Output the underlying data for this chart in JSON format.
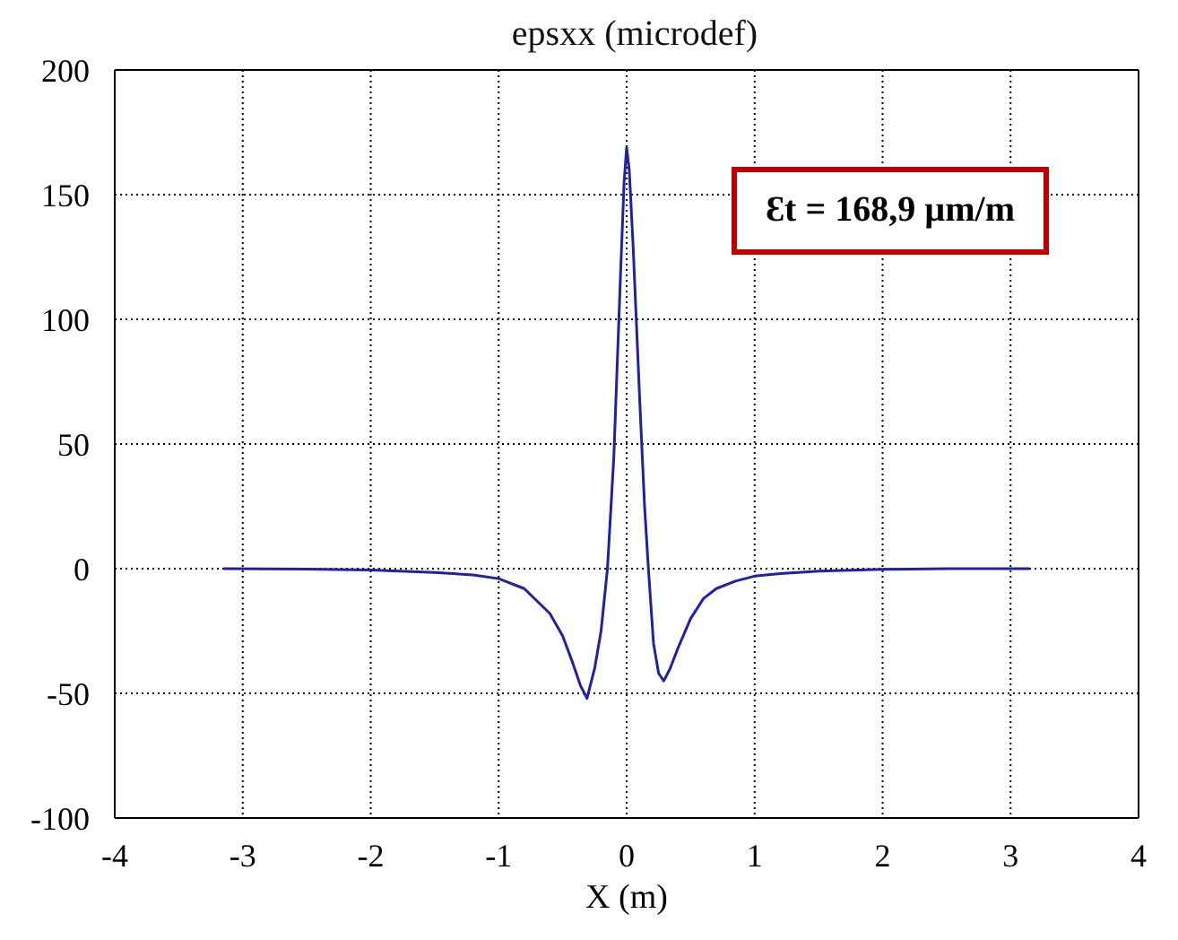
{
  "chart_data": {
    "type": "line",
    "title": "epsxx (microdef)",
    "xlabel": "X (m)",
    "annotations": [
      "Ɛt = 168,9 µm/m"
    ],
    "x": [
      -3.15,
      -2.5,
      -2,
      -1.5,
      -1.2,
      -1,
      -0.8,
      -0.6,
      -0.5,
      -0.42,
      -0.36,
      -0.31,
      -0.25,
      -0.2,
      -0.15,
      -0.1,
      -0.05,
      -0.02,
      0,
      0.02,
      0.05,
      0.1,
      0.14,
      0.17,
      0.21,
      0.25,
      0.29,
      0.34,
      0.4,
      0.5,
      0.6,
      0.7,
      0.85,
      1,
      1.2,
      1.5,
      2,
      2.5,
      3.15
    ],
    "series": [
      {
        "color": "#2020a8",
        "values": [
          0,
          -0.2,
          -0.5,
          -1.5,
          -2.5,
          -4,
          -8,
          -18,
          -27,
          -38,
          -47,
          -52,
          -40,
          -25,
          0,
          45,
          115,
          155,
          168.9,
          160,
          130,
          70,
          25,
          0,
          -30,
          -42,
          -45,
          -40,
          -32,
          -20,
          -12,
          -8,
          -5,
          -3,
          -2,
          -1,
          -0.3,
          0,
          0
        ]
      }
    ],
    "xlim": [
      -4,
      4
    ],
    "xticks": [
      -4,
      -3,
      -2,
      -1,
      0,
      1,
      2,
      3,
      4
    ],
    "ylim": [
      -100,
      200
    ],
    "yticks": [
      -100,
      -50,
      0,
      50,
      100,
      150,
      200
    ],
    "grid": true,
    "marker": "none",
    "line_style": "solid"
  }
}
